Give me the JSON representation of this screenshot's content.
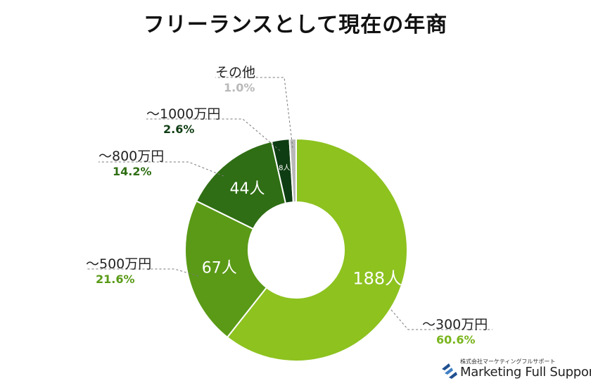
{
  "title": "フリーランスとして現在の年商",
  "chart_data": {
    "type": "pie",
    "title": "フリーランスとして現在の年商",
    "unit": "人",
    "categories": [
      "〜300万円",
      "〜500万円",
      "〜800万円",
      "〜1000万円",
      "その他"
    ],
    "values": [
      188,
      67,
      44,
      8,
      3
    ],
    "percentages": [
      "60.6%",
      "21.6%",
      "14.2%",
      "2.6%",
      "1.0%"
    ],
    "slice_labels": [
      "188人",
      "67人",
      "44人",
      "8人",
      ""
    ],
    "colors": [
      "#8dc21f",
      "#5a9a16",
      "#2f6e14",
      "#0f3d13",
      "#b9b9b9"
    ],
    "percent_colors": [
      "#7ab51d",
      "#5a9a16",
      "#2f6e14",
      "#0f3d13",
      "#b9b9b9"
    ],
    "donut": true,
    "legend": "none"
  },
  "logo": {
    "company": "株式会社マーケティングフルサポート",
    "name": "Marketing Full Support"
  }
}
